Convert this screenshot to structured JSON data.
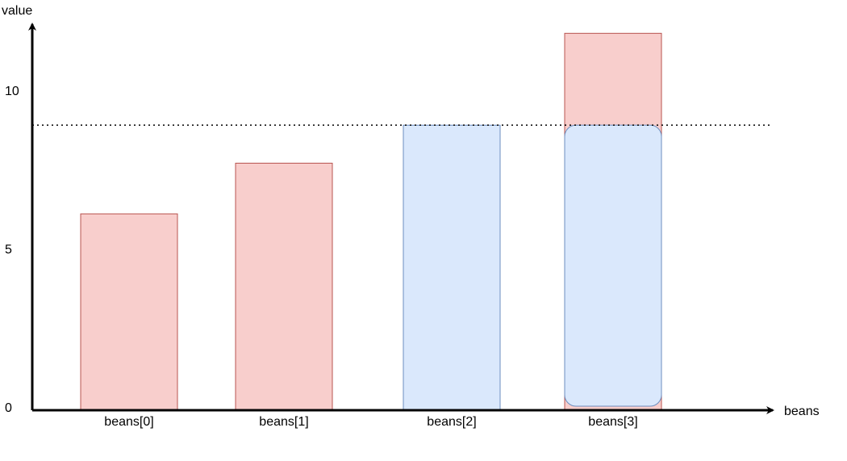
{
  "chart_data": {
    "type": "bar",
    "xlabel": "beans",
    "ylabel": "value",
    "categories": [
      "beans[0]",
      "beans[1]",
      "beans[2]",
      "beans[3]"
    ],
    "y_ticks": [
      {
        "label": "0",
        "value": 0
      },
      {
        "label": "5",
        "value": 5
      },
      {
        "label": "10",
        "value": 10
      }
    ],
    "ylim": [
      0,
      15
    ],
    "grid": false,
    "reference_line": {
      "value": 9,
      "style": "dotted"
    },
    "bars": [
      {
        "category": "beans[0]",
        "value": 6.2,
        "color": "#f8cecc",
        "border": "#b85450"
      },
      {
        "category": "beans[1]",
        "value": 7.8,
        "color": "#f8cecc",
        "border": "#b85450"
      },
      {
        "category": "beans[2]",
        "value": 9.0,
        "color": "#dae8fc",
        "border": "#6c8ebf"
      },
      {
        "category": "beans[3]",
        "value": 11.9,
        "color": "#f8cecc",
        "border": "#b85450"
      }
    ],
    "overlays": [
      {
        "category": "beans[3]",
        "value": 9.0,
        "color": "#dae8fc",
        "border": "#6c8ebf",
        "shape": "rounded"
      }
    ]
  }
}
